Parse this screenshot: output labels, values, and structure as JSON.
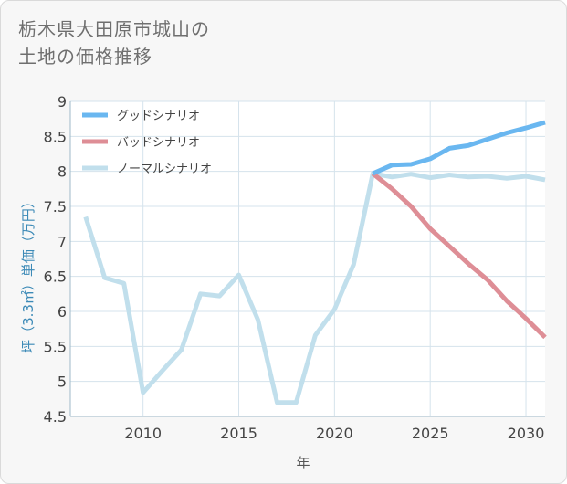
{
  "title_lines": [
    "栃木県大田原市城山の",
    "土地の価格推移"
  ],
  "chart_data": {
    "type": "line",
    "title": "栃木県大田原市城山の土地の価格推移",
    "xlabel": "年",
    "ylabel": "坪（3.3㎡）単価（万円）",
    "xlim": [
      2006.2,
      2031
    ],
    "ylim": [
      4.5,
      9
    ],
    "x_ticks": [
      2010,
      2015,
      2020,
      2025,
      2030
    ],
    "y_ticks": [
      4.5,
      5,
      5.5,
      6,
      6.5,
      7,
      7.5,
      8,
      8.5,
      9
    ],
    "grid": true,
    "legend_position": "top-left",
    "series": [
      {
        "name": "グッドシナリオ",
        "color": "#6ab7f0",
        "x": [
          2022,
          2023,
          2024,
          2025,
          2026,
          2027,
          2028,
          2029,
          2030,
          2031
        ],
        "values": [
          7.97,
          8.09,
          8.1,
          8.18,
          8.33,
          8.37,
          8.46,
          8.55,
          8.62,
          8.7
        ]
      },
      {
        "name": "バッドシナリオ",
        "color": "#de8e96",
        "x": [
          2022,
          2023,
          2024,
          2025,
          2026,
          2027,
          2028,
          2029,
          2030,
          2031
        ],
        "values": [
          7.97,
          7.75,
          7.5,
          7.18,
          6.93,
          6.68,
          6.45,
          6.15,
          5.9,
          5.63
        ]
      },
      {
        "name": "ノーマルシナリオ",
        "color": "#c1dfec",
        "x": [
          2007,
          2008,
          2009,
          2010,
          2011,
          2012,
          2013,
          2014,
          2015,
          2016,
          2017,
          2018,
          2019,
          2020,
          2021,
          2022,
          2023,
          2024,
          2025,
          2026,
          2027,
          2028,
          2029,
          2030,
          2031
        ],
        "values": [
          7.35,
          6.48,
          6.4,
          4.84,
          5.15,
          5.45,
          6.25,
          6.22,
          6.52,
          5.88,
          4.7,
          4.7,
          5.66,
          6.03,
          6.67,
          7.97,
          7.92,
          7.96,
          7.91,
          7.95,
          7.92,
          7.93,
          7.9,
          7.93,
          7.88
        ]
      }
    ]
  }
}
